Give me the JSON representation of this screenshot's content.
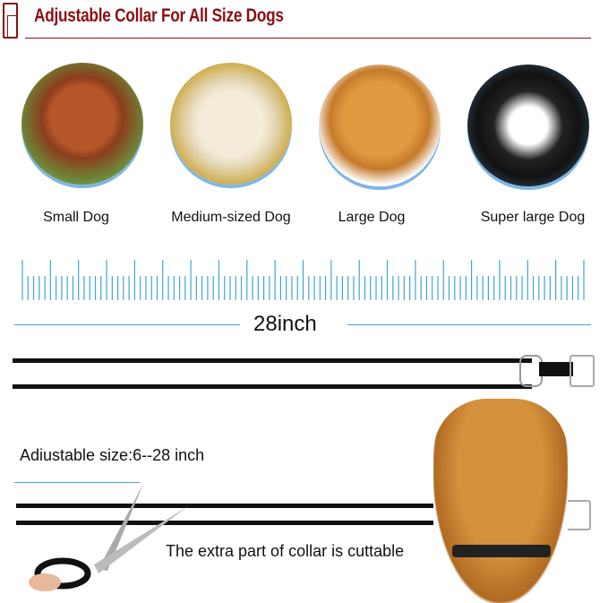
{
  "header": {
    "title": "Adjustable Collar For All Size Dogs",
    "accent": "#8b0f12"
  },
  "dogs": [
    {
      "label": "Small Dog",
      "icon": "poodle-photo"
    },
    {
      "label": "Medium-sized Dog",
      "icon": "labrador-photo"
    },
    {
      "label": "Large Dog",
      "icon": "golden-retriever-photo"
    },
    {
      "label": "Super large Dog",
      "icon": "malamute-photo"
    }
  ],
  "ruler": {
    "color": "#3ea6d6",
    "length_label": "28inch"
  },
  "adjustable": {
    "label": "Adiustable size:6--28 inch",
    "cut_label": "The extra part of collar is cuttable"
  }
}
